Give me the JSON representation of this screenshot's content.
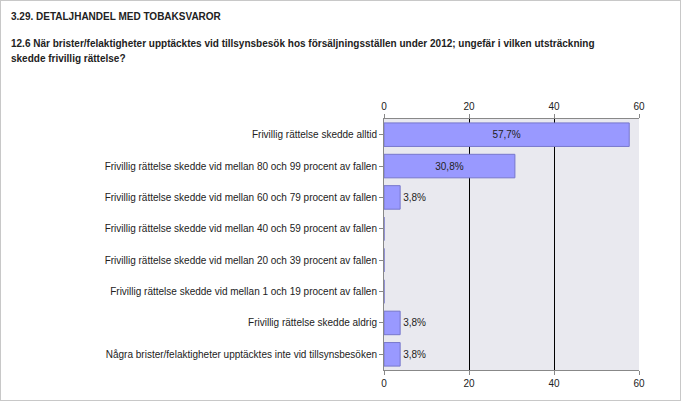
{
  "chart_data": {
    "type": "bar",
    "orientation": "horizontal",
    "title": "3.29. DETALJHANDEL MED TOBAKSVAROR",
    "subtitle": "12.6 När brister/felaktigheter upptäcktes vid tillsynsbesök hos försäljningsställen under 2012; ungefär i vilken utsträckning skedde frivillig rättelse?",
    "categories": [
      "Frivillig rättelse skedde alltid",
      "Frivillig rättelse skedde vid mellan 80 och 99 procent av fallen",
      "Frivillig rättelse skedde vid mellan 60 och 79 procent av fallen",
      "Frivillig rättelse skedde vid mellan 40 och 59 procent av fallen",
      "Frivillig rättelse skedde vid mellan 20 och 39 procent av fallen",
      "Frivillig rättelse skedde vid mellan 1 och 19 procent av fallen",
      "Frivillig rättelse skedde aldrig",
      "Några brister/felaktigheter upptäcktes inte vid tillsynsbesöken"
    ],
    "values": [
      57.7,
      30.8,
      3.8,
      0,
      0,
      0,
      3.8,
      3.8
    ],
    "value_labels": [
      "57,7%",
      "30,8%",
      "3,8%",
      null,
      null,
      null,
      "3,8%",
      "3,8%"
    ],
    "data_labels": true,
    "color": "#9999ff",
    "xlim": [
      0,
      60
    ],
    "xticks": [
      0,
      20,
      40,
      60
    ],
    "grid": true
  }
}
